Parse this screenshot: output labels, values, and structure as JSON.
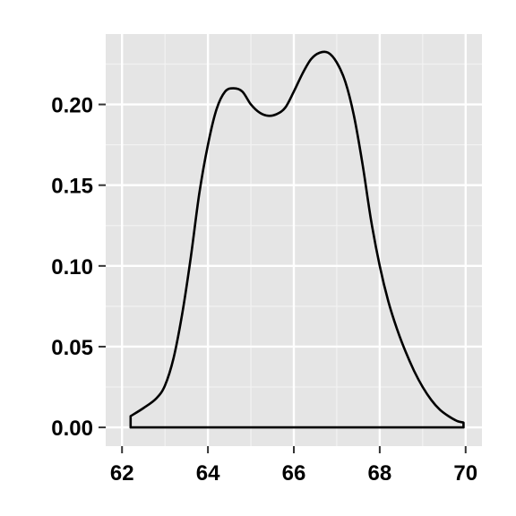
{
  "chart_data": {
    "type": "area",
    "title": "",
    "xlabel": "",
    "ylabel": "",
    "xlim": [
      62,
      70
    ],
    "ylim": [
      0,
      0.232
    ],
    "grid": true,
    "x_ticks": [
      62,
      64,
      66,
      68,
      70
    ],
    "y_ticks": [
      0.0,
      0.05,
      0.1,
      0.15,
      0.2
    ],
    "x_tick_labels": [
      "62",
      "64",
      "66",
      "68",
      "70"
    ],
    "y_tick_labels": [
      "0.00",
      "0.05",
      "0.10",
      "0.15",
      "0.20"
    ],
    "series": [
      {
        "x": [
          62.2,
          62.5,
          62.8,
          63.0,
          63.2,
          63.4,
          63.6,
          63.8,
          64.0,
          64.2,
          64.4,
          64.6,
          64.8,
          65.0,
          65.2,
          65.4,
          65.6,
          65.8,
          66.0,
          66.2,
          66.4,
          66.6,
          66.8,
          67.0,
          67.2,
          67.4,
          67.6,
          67.8,
          68.0,
          68.2,
          68.4,
          68.6,
          68.8,
          69.0,
          69.2,
          69.4,
          69.6,
          69.8,
          69.95
        ],
        "values": [
          0.007,
          0.012,
          0.018,
          0.026,
          0.043,
          0.07,
          0.105,
          0.145,
          0.175,
          0.197,
          0.208,
          0.21,
          0.208,
          0.2,
          0.195,
          0.193,
          0.194,
          0.198,
          0.208,
          0.219,
          0.228,
          0.232,
          0.232,
          0.226,
          0.214,
          0.193,
          0.163,
          0.128,
          0.1,
          0.078,
          0.061,
          0.047,
          0.035,
          0.025,
          0.017,
          0.011,
          0.007,
          0.004,
          0.003
        ]
      }
    ],
    "colors": {
      "panel_background": "#E5E5E5",
      "grid_major": "#FFFFFF",
      "grid_minor": "#F2F2F2",
      "line": "#000000",
      "tick": "#333333"
    }
  }
}
